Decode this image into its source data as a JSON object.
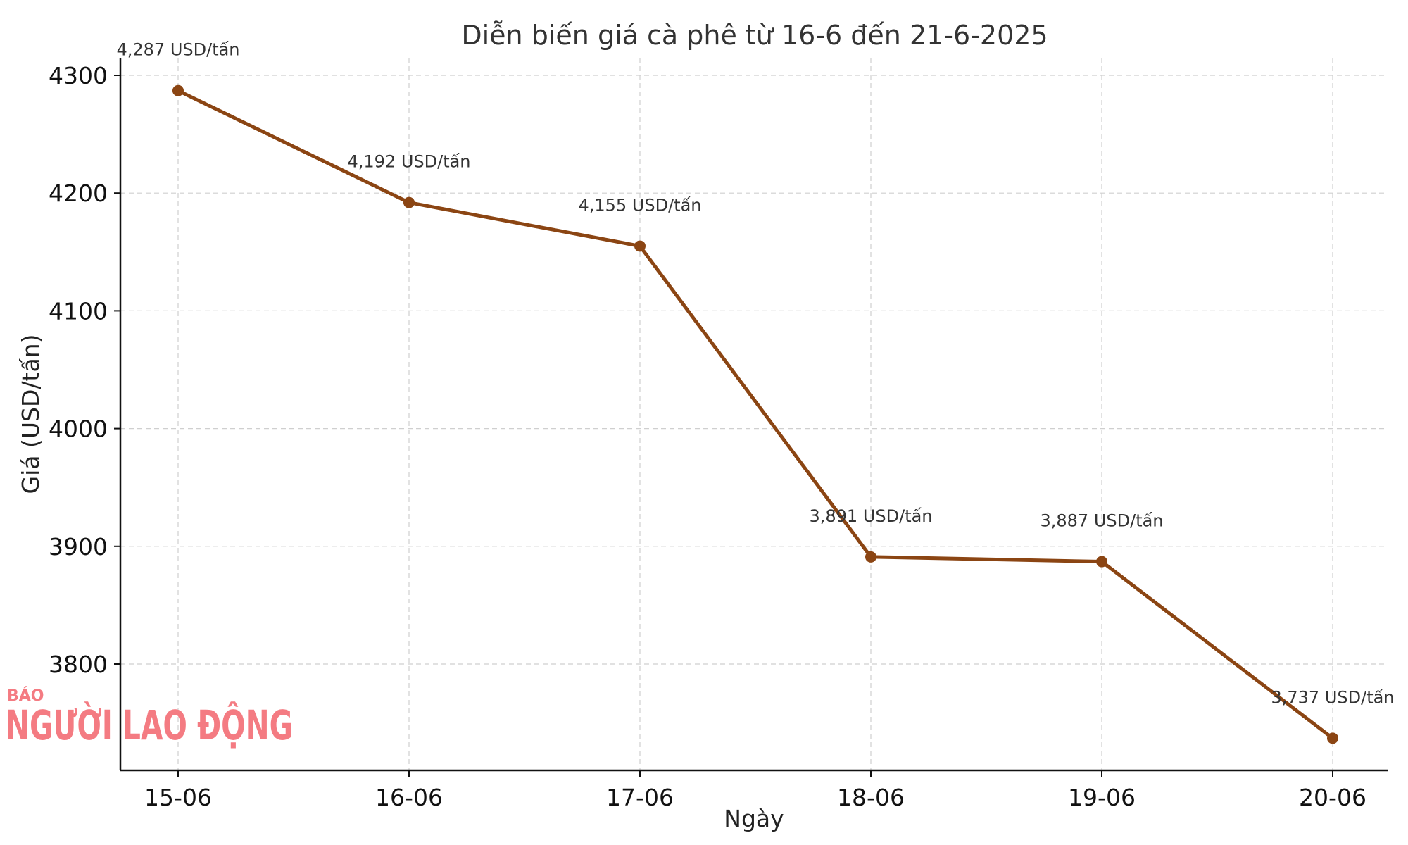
{
  "chart_data": {
    "type": "line",
    "title": "Diễn biến giá cà phê từ 16-6 đến 21-6-2025",
    "xlabel": "Ngày",
    "ylabel": "Giá (USD/tấn)",
    "categories": [
      "15-06",
      "16-06",
      "17-06",
      "18-06",
      "19-06",
      "20-06"
    ],
    "values": [
      4287,
      4192,
      4155,
      3891,
      3887,
      3737
    ],
    "data_labels": [
      "4,287 USD/tấn",
      "4,192 USD/tấn",
      "4,155 USD/tấn",
      "3,891 USD/tấn",
      "3,887 USD/tấn",
      "3,737 USD/tấn"
    ],
    "y_ticks": [
      3800,
      3900,
      4000,
      4100,
      4200,
      4300
    ],
    "ylim": [
      3710,
      4315
    ],
    "grid": true,
    "line_color": "#8B4513"
  },
  "watermark": {
    "small_text": "BÁO",
    "big_text": "NGƯỜI LAO ĐỘNG",
    "color": "#f47b82"
  }
}
